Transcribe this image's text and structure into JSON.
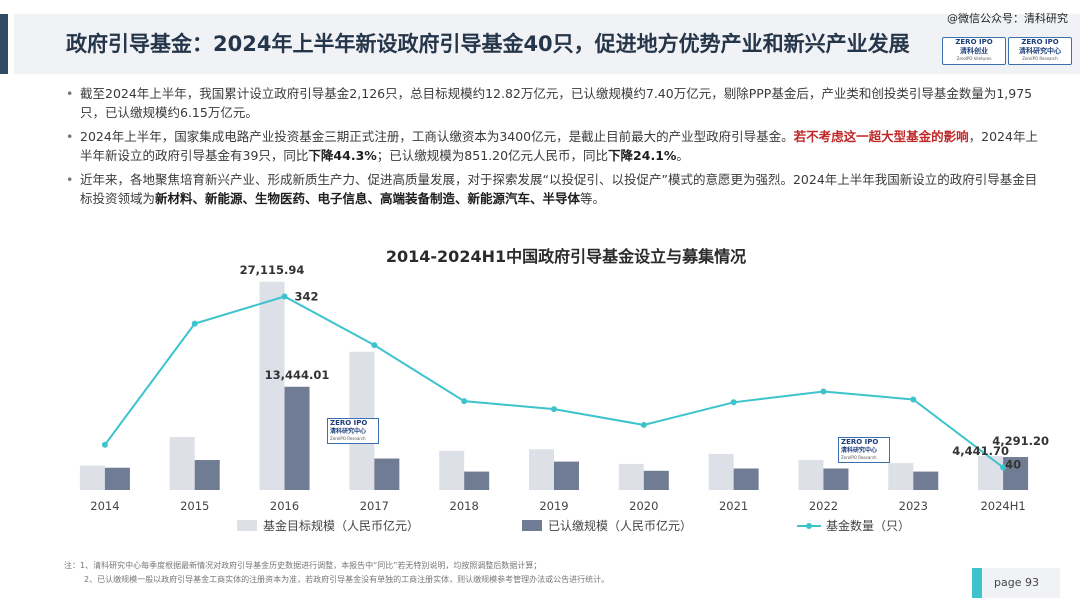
{
  "watermark": "@微信公众号：清科研究",
  "header": {
    "title": "政府引导基金：2024年上半年新设政府引导基金40只，促进地方优势产业和新兴产业发展",
    "logo1_top": "ZERO IPO",
    "logo1_name": "清科创业",
    "logo1_sub": "ZeroIPO Ventures",
    "logo2_top": "ZERO IPO",
    "logo2_name": "清科研究中心",
    "logo2_sub": "ZeroIPO Research"
  },
  "bullets": {
    "b1": "截至2024年上半年，我国累计设立政府引导基金2,126只，总目标规模约12.82万亿元，已认缴规模约7.40万亿元，剔除PPP基金后，产业类和创投类引导基金数量为1,975只，已认缴规模约6.15万亿元。",
    "b2_a": "2024年上半年，国家集成电路产业投资基金三期正式注册，工商认缴资本为3400亿元，是截止目前最大的产业型政府引导基金。",
    "b2_red": "若不考虑这一超大型基金的影响",
    "b2_b": "，2024年上半年新设立的政府引导基金有39只，同比",
    "b2_bold1": "下降44.3%",
    "b2_c": "；已认缴规模为851.20亿元人民币，同比",
    "b2_bold2": "下降24.1%",
    "b2_d": "。",
    "b3_a": "近年来，各地聚焦培育新兴产业、形成新质生产力、促进高质量发展，对于探索发展“以投促引、以投促产”模式的意愿更为强烈。2024年上半年我国新设立的政府引导基金目标投资领域为",
    "b3_bold": "新材料、新能源、生物医药、电子信息、高端装备制造、新能源汽车、半导体",
    "b3_end": "等。"
  },
  "chart_data": {
    "type": "bar",
    "title": "2014-2024H1中国政府引导基金设立与募集情况",
    "categories": [
      "2014",
      "2015",
      "2016",
      "2017",
      "2018",
      "2019",
      "2020",
      "2021",
      "2022",
      "2023",
      "2024H1"
    ],
    "series": [
      {
        "name": "基金目标规模（人民币亿元）",
        "type": "bar",
        "color": "#dde0e6",
        "values": [
          3200,
          6900,
          27115.94,
          18000,
          5100,
          5300,
          3400,
          4700,
          3900,
          3500,
          4441.7
        ]
      },
      {
        "name": "已认缴规模（人民币亿元）",
        "type": "bar",
        "color": "#6f7c93",
        "values": [
          2900,
          3900,
          13444.01,
          4100,
          2400,
          3700,
          2500,
          2800,
          2800,
          2400,
          4291.2
        ]
      },
      {
        "name": "基金数量（只）",
        "type": "line",
        "color": "#3cc3cc",
        "values": [
          80,
          294,
          342,
          256,
          157,
          143,
          115,
          155,
          174,
          160,
          40
        ]
      }
    ],
    "data_labels": {
      "target_2016": "27,115.94",
      "paid_2016": "13,444.01",
      "count_2016": "342",
      "target_2024": "4,441.70",
      "paid_2024": "4,291.20",
      "count_2024": "40"
    },
    "bar_ylim": [
      0,
      28000
    ],
    "line_ylim": [
      0,
      380
    ],
    "legend_position": "bottom",
    "grid": false
  },
  "chart_watermark": {
    "top": "ZERO IPO",
    "name": "清科研究中心",
    "sub": "ZeroIPO Research"
  },
  "footnotes": {
    "n1": "注：1、清科研究中心每季度根据最新情况对政府引导基金历史数据进行调整，本报告中“同比”若无特别说明，均按照调整后数据计算；",
    "n2": "2、已认缴规模一般以政府引导基金工商实体的注册资本为准，若政府引导基金没有单独的工商注册实体，则认缴规模参考管理办法或公告进行统计。"
  },
  "page": "page  93"
}
